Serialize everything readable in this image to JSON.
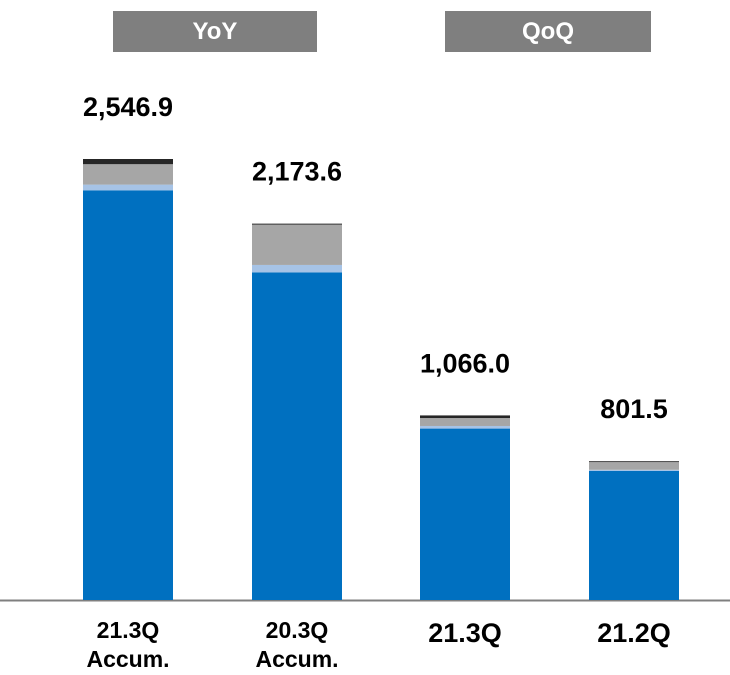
{
  "header": {
    "yoy_label": "YoY",
    "qoq_label": "QoQ"
  },
  "colors": {
    "tag_bg": "#7f7f7f",
    "segments": [
      "#0070c0",
      "#a6c3e6",
      "#a6a6a6",
      "#262626"
    ],
    "axis": "#7f7f7f"
  },
  "chart_data": {
    "type": "bar",
    "stacked": true,
    "categories": [
      [
        "21.3Q",
        "Accum."
      ],
      [
        "20.3Q",
        "Accum."
      ],
      [
        "21.3Q"
      ],
      [
        "21.2Q"
      ]
    ],
    "totals": [
      2546.9,
      2173.6,
      1066.0,
      801.5
    ],
    "total_labels": [
      "2,546.9",
      "2,173.6",
      "1,066.0",
      "801.5"
    ],
    "series": [
      {
        "values": [
          2366.0,
          1892.0,
          990.0,
          745.0
        ]
      },
      {
        "values": [
          33.0,
          43.0,
          15.0,
          7.0
        ]
      },
      {
        "values": [
          118.0,
          233.0,
          46.0,
          44.5
        ]
      },
      {
        "values": [
          29.9,
          5.6,
          15.0,
          5.0
        ]
      }
    ],
    "ylim": [
      0,
      2546.9
    ],
    "grid": false,
    "legend": "none"
  }
}
